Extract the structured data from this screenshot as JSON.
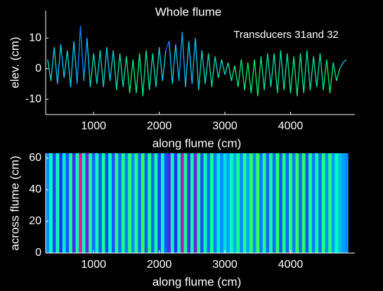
{
  "chart_data": [
    {
      "type": "line",
      "title": "Whole flume",
      "annotation": "Transducers 31and 32",
      "xlabel": "along flume (cm)",
      "ylabel": "elev. (cm)",
      "x": [
        300,
        350,
        400,
        450,
        500,
        550,
        600,
        650,
        700,
        750,
        800,
        850,
        900,
        950,
        1000,
        1050,
        1100,
        1150,
        1200,
        1250,
        1300,
        1350,
        1400,
        1450,
        1500,
        1550,
        1600,
        1650,
        1700,
        1750,
        1800,
        1850,
        1900,
        1950,
        2000,
        2050,
        2100,
        2150,
        2200,
        2250,
        2300,
        2350,
        2400,
        2450,
        2500,
        2550,
        2600,
        2650,
        2700,
        2750,
        2800,
        2850,
        2900,
        2950,
        3000,
        3050,
        3100,
        3150,
        3200,
        3250,
        3300,
        3350,
        3400,
        3450,
        3500,
        3550,
        3600,
        3650,
        3700,
        3750,
        3800,
        3850,
        3900,
        3950,
        4000,
        4050,
        4100,
        4150,
        4200,
        4250,
        4300,
        4350,
        4400,
        4450,
        4500,
        4550,
        4600,
        4650,
        4700,
        4750,
        4800,
        4850
      ],
      "values": [
        3,
        -4,
        7,
        -5,
        8,
        -3,
        6,
        -6,
        9,
        -5,
        14,
        -4,
        10,
        -6,
        5,
        -5,
        6,
        -6,
        7,
        -4,
        6,
        -7,
        5,
        -6,
        4,
        -8,
        3,
        -8,
        5,
        -9,
        6,
        -7,
        5,
        -6,
        7,
        -4,
        6,
        9,
        -5,
        8,
        -4,
        12,
        -6,
        9,
        -5,
        10,
        -7,
        6,
        -5,
        5,
        -6,
        4,
        -3,
        3,
        -2,
        2,
        -4,
        1,
        -6,
        3,
        -7,
        2,
        -8,
        3,
        -9,
        4,
        -7,
        5,
        -6,
        5,
        -8,
        6,
        -7,
        5,
        -8,
        4,
        -9,
        5,
        -8,
        6,
        -7,
        4,
        -6,
        5,
        -7,
        3,
        -8,
        2,
        -4,
        0,
        2,
        3
      ],
      "xlim": [
        270,
        4980
      ],
      "ylim": [
        -15,
        19
      ],
      "xticks": [
        1000,
        2000,
        3000,
        4000
      ],
      "yticks": [
        -10,
        0,
        10
      ],
      "colormap": [
        "#ffff00",
        "#00ff40",
        "#00c8ff",
        "#2040ff",
        "#ff00ff"
      ],
      "clim": [
        -10,
        14
      ]
    },
    {
      "type": "heatmap",
      "xlabel": "along flume (cm)",
      "ylabel": "across flume (cm)",
      "xlim": [
        270,
        4980
      ],
      "ylim": [
        0,
        63
      ],
      "xticks": [
        1000,
        2000,
        3000,
        4000
      ],
      "yticks": [
        0,
        20,
        40,
        60
      ],
      "colormap": [
        "#40ff40",
        "#00ffc0",
        "#00a0ff",
        "#2030ff",
        "#ff1090"
      ],
      "clim": [
        -10,
        14
      ]
    }
  ]
}
